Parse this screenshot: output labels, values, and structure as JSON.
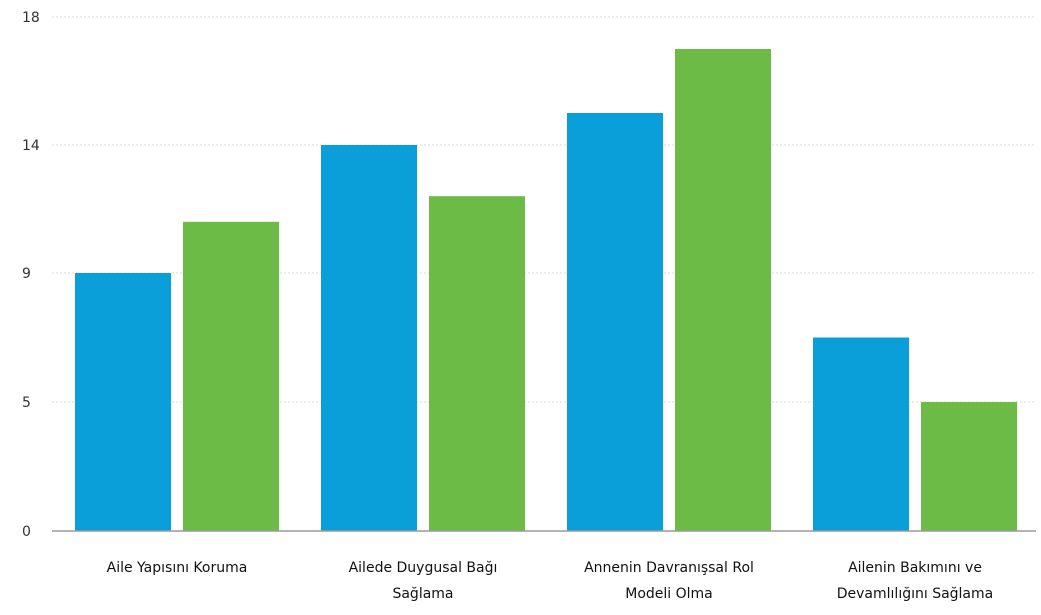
{
  "chart_data": {
    "type": "bar",
    "categories": [
      [
        "Aile Yapısını Koruma"
      ],
      [
        "Ailede Duygusal Bağı",
        "Sağlama"
      ],
      [
        "Annenin Davranışsal Rol",
        "Modeli Olma"
      ],
      [
        "Ailenin Bakımını ve",
        "Devamlılığını Sağlama"
      ]
    ],
    "series": [
      {
        "values": [
          9,
          14,
          15,
          7
        ],
        "color": "#0a9fd8"
      },
      {
        "values": [
          11,
          12,
          17,
          5
        ],
        "color": "#6cbb47"
      }
    ],
    "y_ticks": [
      {
        "value": 0,
        "label": "0"
      },
      {
        "value": 5,
        "label": "5"
      },
      {
        "value": 9,
        "label": "9"
      },
      {
        "value": 14,
        "label": "14"
      },
      {
        "value": 18,
        "label": "18"
      }
    ],
    "ylim": [
      0,
      18
    ],
    "grid": true,
    "title": "",
    "xlabel": "",
    "ylabel": ""
  }
}
